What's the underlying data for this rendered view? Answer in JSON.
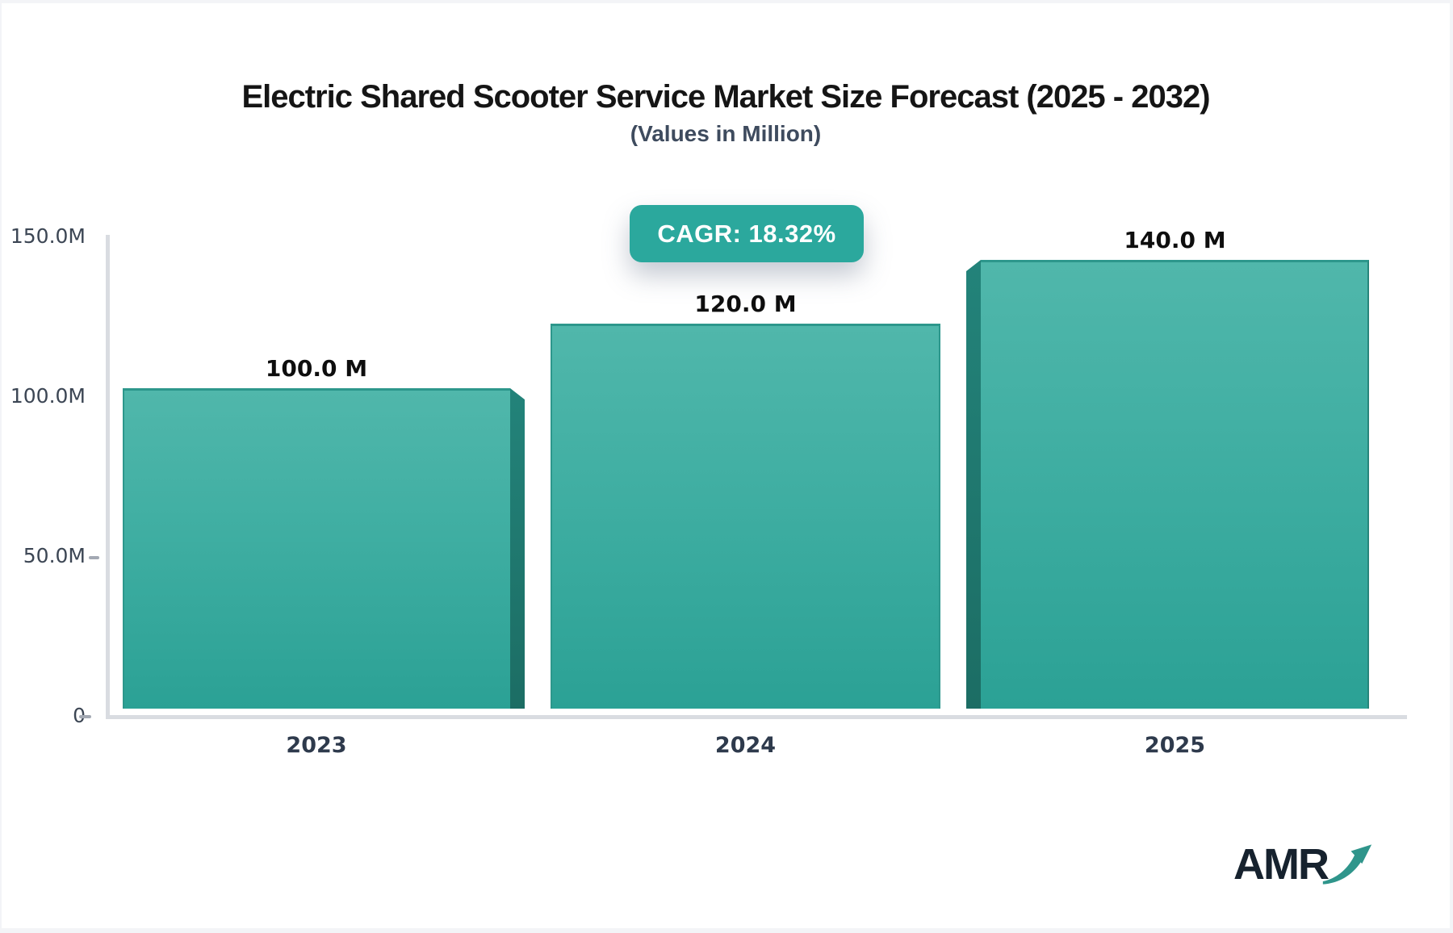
{
  "title": "Electric Shared Scooter Service Market Size Forecast (2025 - 2032)",
  "subtitle": "(Values in Million)",
  "cagr_badge": "CAGR: 18.32%",
  "chart_data": {
    "type": "bar",
    "title": "Electric Shared Scooter Service Market Size Forecast (2025 - 2032)",
    "subtitle": "(Values in Million)",
    "unit": "Million",
    "cagr_pct": 18.32,
    "categories": [
      "2023",
      "2024",
      "2025"
    ],
    "values": [
      100.0,
      120.0,
      140.0
    ],
    "bar_labels": [
      "100.0 M",
      "120.0 M",
      "140.0 M"
    ],
    "ylim": [
      0,
      150
    ],
    "ytick_labels": [
      "150.0M",
      "100.0M",
      "50.0M",
      "0"
    ],
    "grid": false,
    "legend": false
  },
  "colors": {
    "bar_gradient_top": "#50B7AB",
    "bar_gradient_bottom": "#2BA195",
    "bar_side_face": "#1F7A71",
    "badge_bg": "#2BA89D",
    "badge_text": "#FFFFFF",
    "axis_line": "#D9DCE1",
    "title_text": "#151515",
    "subtitle_text": "#3E4B5E",
    "tick_text": "#3C4654",
    "logo_navy": "#16222E",
    "logo_teal": "#2F958B"
  },
  "logo": {
    "text": "AMR"
  }
}
